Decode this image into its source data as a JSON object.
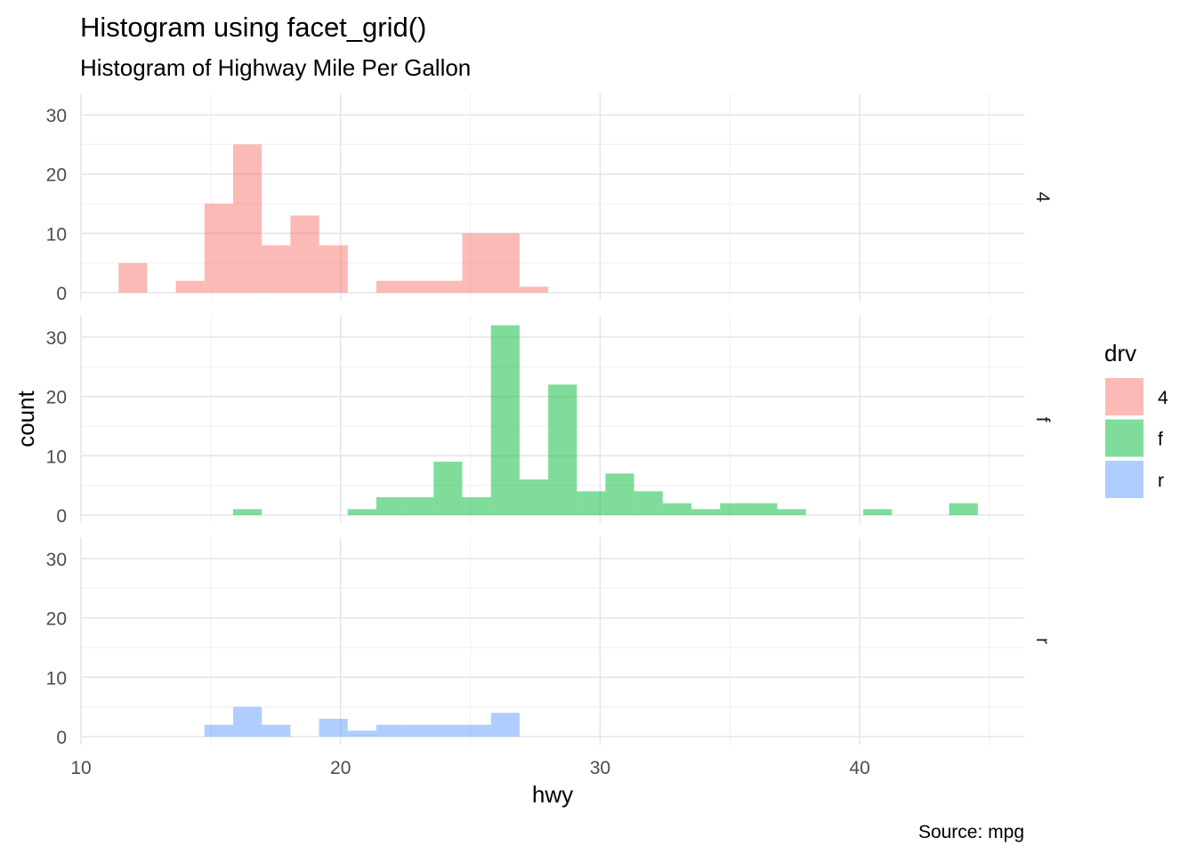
{
  "chart_data": {
    "type": "bar",
    "title": "Histogram using facet_grid()",
    "subtitle": "Histogram of Highway Mile Per Gallon",
    "caption": "Source: mpg",
    "xlabel": "hwy",
    "ylabel": "count",
    "xlim": [
      10,
      46
    ],
    "ylim": [
      0,
      32
    ],
    "x_ticks": [
      10,
      20,
      30,
      40
    ],
    "y_ticks": [
      0,
      10,
      20,
      30
    ],
    "grid": true,
    "legend": {
      "title": "drv",
      "placement": "right",
      "entries": [
        "4",
        "f",
        "r"
      ]
    },
    "bins": {
      "count": 30,
      "first_center": 12,
      "width": 1.1034
    },
    "series": [
      {
        "name": "4",
        "color": "#F8766D",
        "values": [
          5,
          0,
          2,
          15,
          25,
          8,
          13,
          8,
          0,
          2,
          2,
          2,
          10,
          10,
          1,
          0,
          0,
          0,
          0,
          0,
          0,
          0,
          0,
          0,
          0,
          0,
          0,
          0,
          0,
          0
        ]
      },
      {
        "name": "f",
        "color": "#00BA38",
        "values": [
          0,
          0,
          0,
          0,
          1,
          0,
          0,
          0,
          1,
          3,
          3,
          9,
          3,
          32,
          6,
          22,
          4,
          7,
          4,
          2,
          1,
          2,
          2,
          1,
          0,
          0,
          1,
          0,
          0,
          2
        ]
      },
      {
        "name": "r",
        "color": "#619CFF",
        "values": [
          0,
          0,
          0,
          2,
          5,
          2,
          0,
          3,
          1,
          2,
          2,
          2,
          2,
          4,
          0,
          0,
          0,
          0,
          0,
          0,
          0,
          0,
          0,
          0,
          0,
          0,
          0,
          0,
          0,
          0
        ]
      }
    ]
  }
}
